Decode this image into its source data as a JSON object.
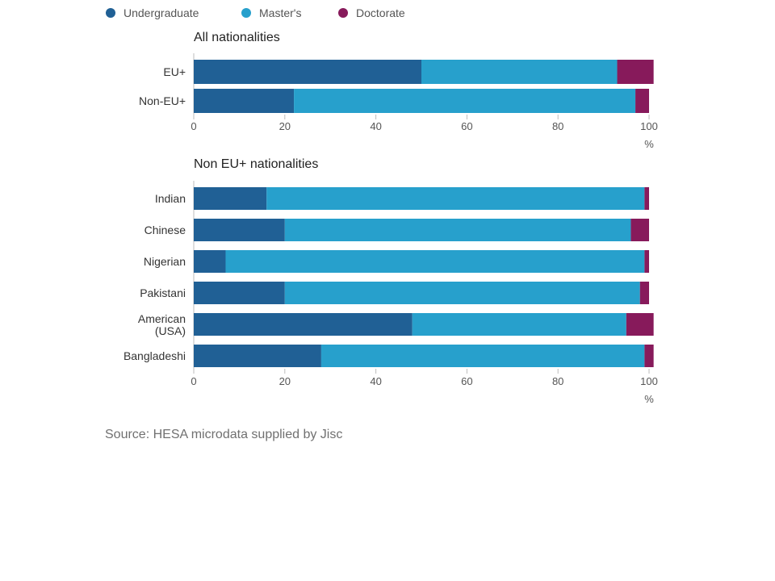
{
  "legend": [
    {
      "name": "Undergraduate",
      "color": "#206095"
    },
    {
      "name": "Master's",
      "color": "#27a0cc"
    },
    {
      "name": "Doctorate",
      "color": "#871a5b"
    }
  ],
  "chart_data": [
    {
      "type": "bar",
      "orientation": "horizontal",
      "stacked": true,
      "title": "All nationalities",
      "categories": [
        "EU+",
        "Non-EU+"
      ],
      "series": [
        {
          "name": "Undergraduate",
          "values": [
            50,
            22
          ]
        },
        {
          "name": "Master's",
          "values": [
            43,
            75
          ]
        },
        {
          "name": "Doctorate",
          "values": [
            8,
            3
          ]
        }
      ],
      "xlim": [
        0,
        100
      ],
      "xticks": [
        0,
        20,
        40,
        60,
        80,
        100
      ],
      "xunit": "%",
      "legend_position": "top-left"
    },
    {
      "type": "bar",
      "orientation": "horizontal",
      "stacked": true,
      "title": "Non EU+ nationalities",
      "categories": [
        "Indian",
        "Chinese",
        "Nigerian",
        "Pakistani",
        "American (USA)",
        "Bangladeshi"
      ],
      "series": [
        {
          "name": "Undergraduate",
          "values": [
            16,
            20,
            7,
            20,
            48,
            28
          ]
        },
        {
          "name": "Master's",
          "values": [
            83,
            76,
            92,
            78,
            47,
            71
          ]
        },
        {
          "name": "Doctorate",
          "values": [
            1,
            4,
            1,
            2,
            6,
            2
          ]
        }
      ],
      "xlim": [
        0,
        100
      ],
      "xticks": [
        0,
        20,
        40,
        60,
        80,
        100
      ],
      "xunit": "%"
    }
  ],
  "source": "Source: HESA microdata supplied by Jisc"
}
